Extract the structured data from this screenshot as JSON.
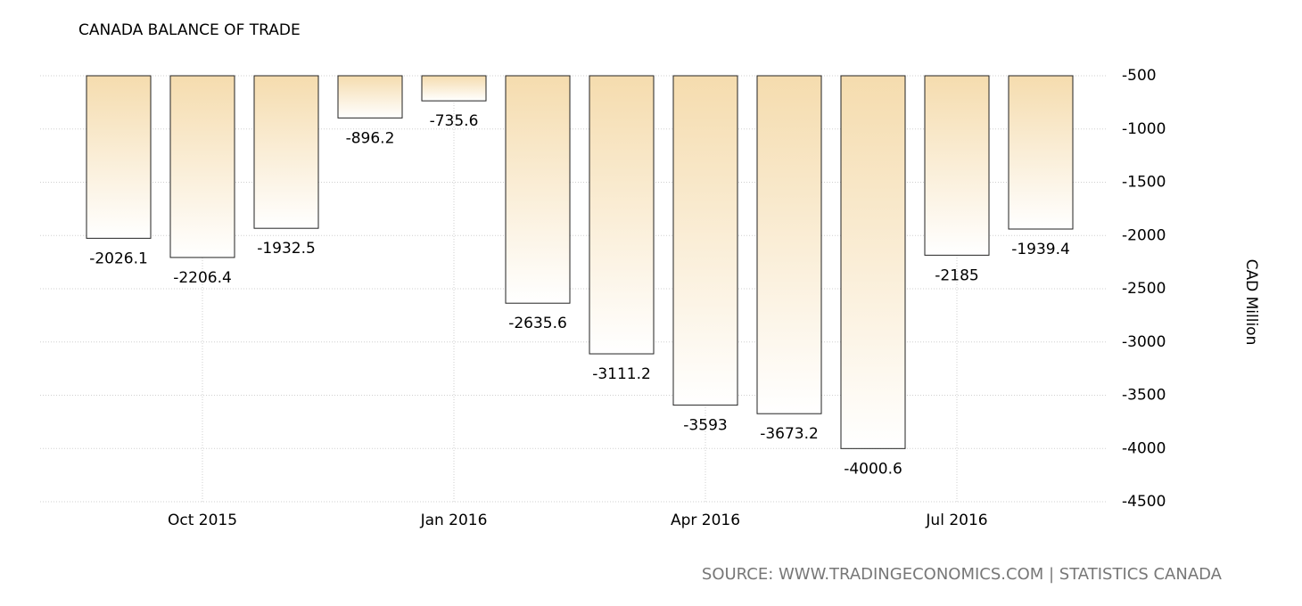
{
  "chart_data": {
    "type": "bar",
    "title": "CANADA BALANCE OF TRADE",
    "y_axis_label": "CAD Million",
    "source": "SOURCE: WWW.TRADINGECONOMICS.COM | STATISTICS CANADA",
    "categories": [
      null,
      "Oct 2015",
      null,
      null,
      "Jan 2016",
      null,
      null,
      "Apr 2016",
      null,
      null,
      "Jul 2016",
      null
    ],
    "values": [
      -2026.1,
      -2206.4,
      -1932.5,
      -896.2,
      -735.6,
      -2635.6,
      -3111.2,
      -3593,
      -3673.2,
      -4000.6,
      -2185,
      -1939.4
    ],
    "color": "#f5dcae",
    "ylim": [
      -4500,
      -500
    ],
    "yticks": [
      -500,
      -1000,
      -1500,
      -2000,
      -2500,
      -3000,
      -3500,
      -4000,
      -4500
    ],
    "grid": true
  }
}
